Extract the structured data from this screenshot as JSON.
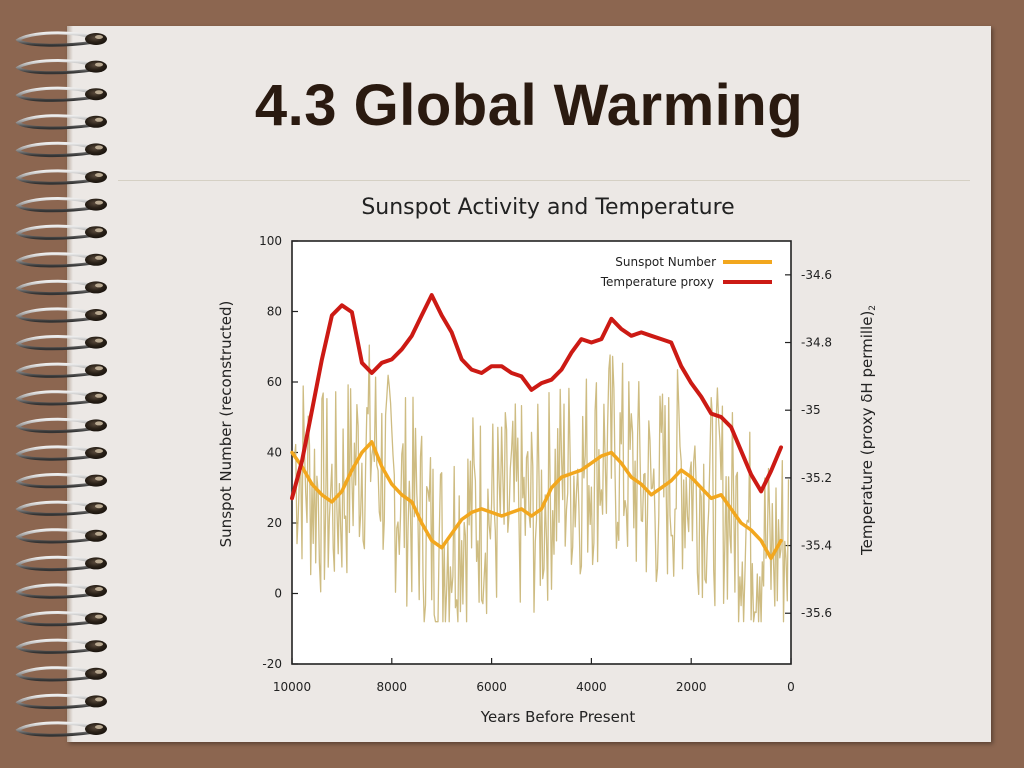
{
  "slide": {
    "title": "4.3 Global Warming"
  },
  "chart_data": {
    "type": "line",
    "title": "Sunspot Activity and Temperature",
    "xlabel": "Years Before Present",
    "ylabel": "Sunspot Number (reconstructed)",
    "y2label": "Temperature (proxy δH permille)",
    "y2label_subscript": "2",
    "xlim": [
      10000,
      0
    ],
    "ylim": [
      -20,
      100
    ],
    "y2lim": [
      -35.75,
      -34.5
    ],
    "x_ticks": [
      10000,
      8000,
      6000,
      4000,
      2000,
      0
    ],
    "y_ticks": [
      100,
      80,
      60,
      40,
      20,
      0,
      -20
    ],
    "y2_ticks": [
      "-34.6",
      "-34.8",
      "-35",
      "-35.2",
      "-35.4",
      "-35.6"
    ],
    "legend_position": "top-right",
    "series": [
      {
        "name": "Sunspot Number",
        "axis": "left",
        "color": "#f2a71e",
        "x": [
          10000,
          9800,
          9600,
          9400,
          9200,
          9000,
          8800,
          8600,
          8400,
          8200,
          8000,
          7800,
          7600,
          7400,
          7200,
          7000,
          6800,
          6600,
          6400,
          6200,
          6000,
          5800,
          5600,
          5400,
          5200,
          5000,
          4800,
          4600,
          4400,
          4200,
          4000,
          3800,
          3600,
          3400,
          3200,
          3000,
          2800,
          2600,
          2400,
          2200,
          2000,
          1800,
          1600,
          1400,
          1200,
          1000,
          800,
          600,
          400,
          200
        ],
        "values": [
          40,
          36,
          31,
          28,
          26,
          29,
          35,
          40,
          43,
          36,
          31,
          28,
          26,
          20,
          15,
          13,
          17,
          21,
          23,
          24,
          23,
          22,
          23,
          24,
          22,
          24,
          30,
          33,
          34,
          35,
          37,
          39,
          40,
          37,
          33,
          31,
          28,
          30,
          32,
          35,
          33,
          30,
          27,
          28,
          24,
          20,
          18,
          15,
          10,
          15
        ]
      },
      {
        "name": "Temperature proxy",
        "axis": "right",
        "color": "#cc1a14",
        "x": [
          10000,
          9800,
          9600,
          9400,
          9200,
          9000,
          8800,
          8600,
          8400,
          8200,
          8000,
          7800,
          7600,
          7400,
          7200,
          7000,
          6800,
          6600,
          6400,
          6200,
          6000,
          5800,
          5600,
          5400,
          5200,
          5000,
          4800,
          4600,
          4400,
          4200,
          4000,
          3800,
          3600,
          3400,
          3200,
          3000,
          2800,
          2600,
          2400,
          2200,
          2000,
          1800,
          1600,
          1400,
          1200,
          1000,
          800,
          600,
          400,
          200
        ],
        "values": [
          -35.26,
          -35.15,
          -35.0,
          -34.85,
          -34.72,
          -34.69,
          -34.71,
          -34.86,
          -34.89,
          -34.86,
          -34.85,
          -34.82,
          -34.78,
          -34.72,
          -34.66,
          -34.72,
          -34.77,
          -34.85,
          -34.88,
          -34.89,
          -34.87,
          -34.87,
          -34.89,
          -34.9,
          -34.94,
          -34.92,
          -34.91,
          -34.88,
          -34.83,
          -34.79,
          -34.8,
          -34.79,
          -34.73,
          -34.76,
          -34.78,
          -34.77,
          -34.78,
          -34.79,
          -34.8,
          -34.87,
          -34.92,
          -34.96,
          -35.01,
          -35.02,
          -35.05,
          -35.12,
          -35.19,
          -35.24,
          -35.18,
          -35.11
        ]
      }
    ]
  }
}
